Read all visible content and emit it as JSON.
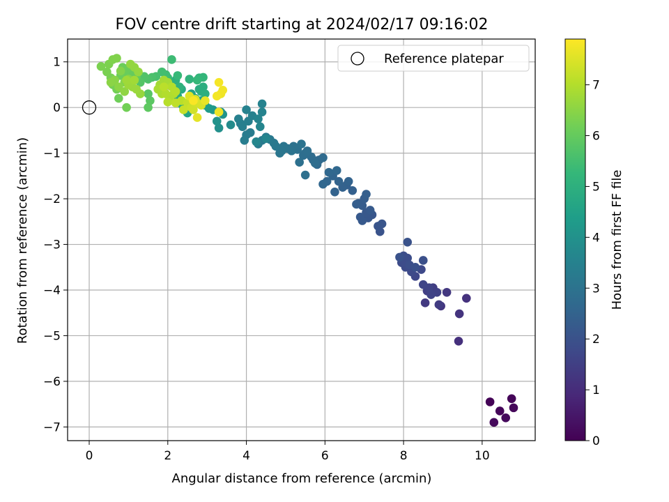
{
  "chart_data": {
    "type": "scatter",
    "title": "FOV centre drift starting at 2024/02/17 09:16:02",
    "xlabel": "Angular distance from reference (arcmin)",
    "ylabel": "Rotation from reference (arcmin)",
    "xlim": [
      -0.55,
      11.35
    ],
    "ylim": [
      -7.3,
      1.5
    ],
    "xticks": [
      "0",
      "2",
      "4",
      "6",
      "8",
      "10"
    ],
    "xtick_values": [
      0,
      2,
      4,
      6,
      8,
      10
    ],
    "yticks": [
      "1",
      "0",
      "−1",
      "−2",
      "−3",
      "−4",
      "−5",
      "−6",
      "−7"
    ],
    "ytick_values": [
      1,
      0,
      -1,
      -2,
      -3,
      -4,
      -5,
      -6,
      -7
    ],
    "grid": true,
    "legend": {
      "placement": "top-right",
      "label": "Reference platepar"
    },
    "reference_point": {
      "x": 0,
      "y": 0
    },
    "colorbar": {
      "label": "Hours from first FF file",
      "range": [
        0,
        7.9
      ],
      "ticks": [
        "0",
        "1",
        "2",
        "3",
        "4",
        "5",
        "6",
        "7"
      ],
      "tick_values": [
        0,
        1,
        2,
        3,
        4,
        5,
        6,
        7
      ],
      "colormap": "viridis",
      "stops": [
        "#440154",
        "#482878",
        "#3e4989",
        "#31688e",
        "#26828e",
        "#1f9e89",
        "#35b779",
        "#6ece58",
        "#b5de2b",
        "#fde725"
      ]
    },
    "points": [
      [
        10.2,
        -6.45,
        0.05
      ],
      [
        10.75,
        -6.38,
        0.1
      ],
      [
        10.45,
        -6.65,
        0.12
      ],
      [
        10.8,
        -6.58,
        0.15
      ],
      [
        10.3,
        -6.9,
        0.18
      ],
      [
        10.6,
        -6.8,
        0.2
      ],
      [
        9.4,
        -5.12,
        1.1
      ],
      [
        9.6,
        -4.18,
        1.15
      ],
      [
        9.42,
        -4.52,
        1.2
      ],
      [
        8.95,
        -4.35,
        1.25
      ],
      [
        9.1,
        -4.05,
        1.3
      ],
      [
        8.55,
        -4.28,
        1.35
      ],
      [
        8.9,
        -4.32,
        1.4
      ],
      [
        8.75,
        -3.95,
        1.45
      ],
      [
        8.6,
        -4.02,
        1.5
      ],
      [
        8.85,
        -4.05,
        1.55
      ],
      [
        8.7,
        -4.1,
        1.6
      ],
      [
        8.65,
        -3.95,
        1.62
      ],
      [
        8.5,
        -3.88,
        1.65
      ],
      [
        8.3,
        -3.7,
        1.7
      ],
      [
        8.45,
        -3.55,
        1.75
      ],
      [
        8.2,
        -3.6,
        1.78
      ],
      [
        8.05,
        -3.5,
        1.82
      ],
      [
        7.95,
        -3.4,
        1.85
      ],
      [
        8.1,
        -3.3,
        1.88
      ],
      [
        8.0,
        -3.25,
        1.9
      ],
      [
        8.15,
        -3.45,
        1.92
      ],
      [
        8.5,
        -3.35,
        1.95
      ],
      [
        8.3,
        -3.5,
        1.98
      ],
      [
        8.1,
        -2.95,
        2.0
      ],
      [
        7.9,
        -3.28,
        2.02
      ],
      [
        7.4,
        -2.72,
        2.05
      ],
      [
        7.35,
        -2.6,
        2.08
      ],
      [
        7.45,
        -2.55,
        2.1
      ],
      [
        7.2,
        -2.35,
        2.12
      ],
      [
        7.1,
        -2.42,
        2.15
      ],
      [
        7.05,
        -2.3,
        2.18
      ],
      [
        6.95,
        -2.48,
        2.2
      ],
      [
        6.9,
        -2.4,
        2.22
      ],
      [
        7.15,
        -2.25,
        2.25
      ],
      [
        6.95,
        -2.15,
        2.28
      ],
      [
        6.85,
        -2.1,
        2.3
      ],
      [
        7.0,
        -2.0,
        2.32
      ],
      [
        6.8,
        -2.12,
        2.35
      ],
      [
        7.05,
        -1.9,
        2.38
      ],
      [
        6.7,
        -1.82,
        2.4
      ],
      [
        6.55,
        -1.7,
        2.42
      ],
      [
        6.45,
        -1.75,
        2.45
      ],
      [
        6.6,
        -1.62,
        2.48
      ],
      [
        6.25,
        -1.85,
        2.5
      ],
      [
        6.35,
        -1.62,
        2.52
      ],
      [
        6.2,
        -1.5,
        2.55
      ],
      [
        6.05,
        -1.62,
        2.58
      ],
      [
        5.95,
        -1.68,
        2.6
      ],
      [
        6.1,
        -1.42,
        2.62
      ],
      [
        6.3,
        -1.38,
        2.65
      ],
      [
        5.8,
        -1.25,
        2.68
      ],
      [
        5.85,
        -1.15,
        2.7
      ],
      [
        5.7,
        -1.15,
        2.72
      ],
      [
        5.95,
        -1.1,
        2.75
      ],
      [
        5.65,
        -1.08,
        2.78
      ],
      [
        5.75,
        -1.22,
        2.8
      ],
      [
        5.5,
        -1.0,
        2.82
      ],
      [
        5.45,
        -1.05,
        2.85
      ],
      [
        5.55,
        -0.95,
        2.88
      ],
      [
        5.5,
        -1.48,
        2.9
      ],
      [
        5.35,
        -1.2,
        2.92
      ],
      [
        5.3,
        -0.92,
        2.95
      ],
      [
        5.2,
        -0.85,
        2.98
      ],
      [
        5.15,
        -0.95,
        3.0
      ],
      [
        5.4,
        -0.8,
        3.02
      ],
      [
        5.05,
        -0.9,
        3.05
      ],
      [
        4.95,
        -0.85,
        3.08
      ],
      [
        4.9,
        -0.95,
        3.1
      ],
      [
        4.85,
        -1.0,
        3.12
      ],
      [
        4.75,
        -0.85,
        3.15
      ],
      [
        4.7,
        -0.78,
        3.18
      ],
      [
        4.6,
        -0.7,
        3.2
      ],
      [
        4.5,
        -0.65,
        3.22
      ],
      [
        4.4,
        -0.72,
        3.25
      ],
      [
        4.3,
        -0.8,
        3.28
      ],
      [
        4.1,
        -0.55,
        3.3
      ],
      [
        4.0,
        -0.6,
        3.32
      ],
      [
        3.95,
        -0.72,
        3.35
      ],
      [
        3.85,
        -0.35,
        3.38
      ],
      [
        3.9,
        -0.42,
        3.4
      ],
      [
        4.05,
        -0.3,
        3.42
      ],
      [
        3.8,
        -0.25,
        3.45
      ],
      [
        4.15,
        -0.18,
        3.48
      ],
      [
        4.0,
        -0.05,
        3.5
      ],
      [
        4.4,
        0.08,
        3.52
      ],
      [
        4.4,
        -0.1,
        3.55
      ],
      [
        4.3,
        -0.25,
        3.58
      ],
      [
        4.35,
        -0.42,
        3.6
      ],
      [
        4.5,
        -0.68,
        3.62
      ],
      [
        4.25,
        -0.75,
        3.65
      ],
      [
        3.6,
        -0.38,
        3.8
      ],
      [
        3.3,
        -0.45,
        3.95
      ],
      [
        3.25,
        -0.3,
        4.0
      ],
      [
        3.4,
        -0.15,
        4.05
      ],
      [
        3.35,
        -0.1,
        4.1
      ],
      [
        3.15,
        -0.05,
        4.2
      ],
      [
        3.05,
        -0.02,
        4.3
      ],
      [
        2.95,
        0.05,
        4.4
      ],
      [
        2.85,
        0.15,
        4.45
      ],
      [
        2.7,
        0.2,
        4.5
      ],
      [
        2.6,
        0.3,
        4.55
      ],
      [
        2.5,
        -0.12,
        4.6
      ],
      [
        2.4,
        0.0,
        4.65
      ],
      [
        2.3,
        0.1,
        4.7
      ],
      [
        2.25,
        0.25,
        4.75
      ],
      [
        2.35,
        0.4,
        4.8
      ],
      [
        2.8,
        0.4,
        4.85
      ],
      [
        2.9,
        0.45,
        4.9
      ],
      [
        2.85,
        0.35,
        4.92
      ],
      [
        2.95,
        0.3,
        4.95
      ],
      [
        2.2,
        0.6,
        5.0
      ],
      [
        2.3,
        0.45,
        5.05
      ],
      [
        2.55,
        0.62,
        5.1
      ],
      [
        2.8,
        0.65,
        5.15
      ],
      [
        2.9,
        0.66,
        5.2
      ],
      [
        2.75,
        0.6,
        5.25
      ],
      [
        2.25,
        0.7,
        5.3
      ],
      [
        2.0,
        0.65,
        5.35
      ],
      [
        2.1,
        1.05,
        5.4
      ],
      [
        1.95,
        0.72,
        5.45
      ],
      [
        1.85,
        0.78,
        5.5
      ],
      [
        1.7,
        0.68,
        5.55
      ],
      [
        1.6,
        0.66,
        5.6
      ],
      [
        1.5,
        0.62,
        5.65
      ],
      [
        1.4,
        0.68,
        5.7
      ],
      [
        1.3,
        0.55,
        5.75
      ],
      [
        1.5,
        0.3,
        5.8
      ],
      [
        1.55,
        0.15,
        5.85
      ],
      [
        1.5,
        0.0,
        5.9
      ],
      [
        1.2,
        0.68,
        5.95
      ],
      [
        1.1,
        0.75,
        6.0
      ],
      [
        1.0,
        0.72,
        6.02
      ],
      [
        0.9,
        0.75,
        6.05
      ],
      [
        0.95,
        0.85,
        6.08
      ],
      [
        0.85,
        0.88,
        6.1
      ],
      [
        0.8,
        0.7,
        6.12
      ],
      [
        0.75,
        0.2,
        6.15
      ],
      [
        0.95,
        0.0,
        6.18
      ],
      [
        0.7,
        0.4,
        6.2
      ],
      [
        0.6,
        0.5,
        6.22
      ],
      [
        0.55,
        0.65,
        6.25
      ],
      [
        0.45,
        0.78,
        6.28
      ],
      [
        0.3,
        0.9,
        6.3
      ],
      [
        0.5,
        0.95,
        6.32
      ],
      [
        0.6,
        1.05,
        6.35
      ],
      [
        0.7,
        1.08,
        6.38
      ],
      [
        0.8,
        0.8,
        6.4
      ],
      [
        0.9,
        0.55,
        6.42
      ],
      [
        1.0,
        0.62,
        6.45
      ],
      [
        0.65,
        0.6,
        6.48
      ],
      [
        0.55,
        0.55,
        6.5
      ],
      [
        0.75,
        0.45,
        6.52
      ],
      [
        0.9,
        0.35,
        6.55
      ],
      [
        1.15,
        0.88,
        6.58
      ],
      [
        1.05,
        0.95,
        6.6
      ],
      [
        1.25,
        0.78,
        6.62
      ],
      [
        1.3,
        0.3,
        6.65
      ],
      [
        1.1,
        0.45,
        6.68
      ],
      [
        1.2,
        0.4,
        6.7
      ],
      [
        1.0,
        0.5,
        6.72
      ],
      [
        0.95,
        0.6,
        6.75
      ],
      [
        1.15,
        0.6,
        6.78
      ],
      [
        1.8,
        0.5,
        6.8
      ],
      [
        1.9,
        0.6,
        6.82
      ],
      [
        2.0,
        0.55,
        6.85
      ],
      [
        1.75,
        0.4,
        6.88
      ],
      [
        1.85,
        0.3,
        6.9
      ],
      [
        2.05,
        0.2,
        6.92
      ],
      [
        2.15,
        0.3,
        6.95
      ],
      [
        1.95,
        0.3,
        6.98
      ],
      [
        2.1,
        0.45,
        7.0
      ],
      [
        2.2,
        0.35,
        7.02
      ],
      [
        2.0,
        0.12,
        7.05
      ],
      [
        1.9,
        0.45,
        7.08
      ],
      [
        2.35,
        0.15,
        7.1
      ],
      [
        2.2,
        0.1,
        7.15
      ],
      [
        2.5,
        0.1,
        7.2
      ],
      [
        2.4,
        -0.05,
        7.25
      ],
      [
        2.6,
        0.0,
        7.3
      ],
      [
        2.65,
        -0.05,
        7.35
      ],
      [
        2.75,
        0.1,
        7.4
      ],
      [
        2.85,
        0.05,
        7.45
      ],
      [
        2.7,
        0.18,
        7.5
      ],
      [
        2.55,
        0.25,
        7.55
      ],
      [
        2.75,
        -0.22,
        7.6
      ],
      [
        2.95,
        0.15,
        7.65
      ],
      [
        3.3,
        -0.1,
        7.7
      ],
      [
        3.35,
        0.3,
        7.72
      ],
      [
        3.4,
        0.38,
        7.75
      ],
      [
        3.25,
        0.25,
        7.78
      ],
      [
        3.3,
        0.55,
        7.8
      ],
      [
        2.65,
        0.15,
        7.85
      ]
    ]
  }
}
